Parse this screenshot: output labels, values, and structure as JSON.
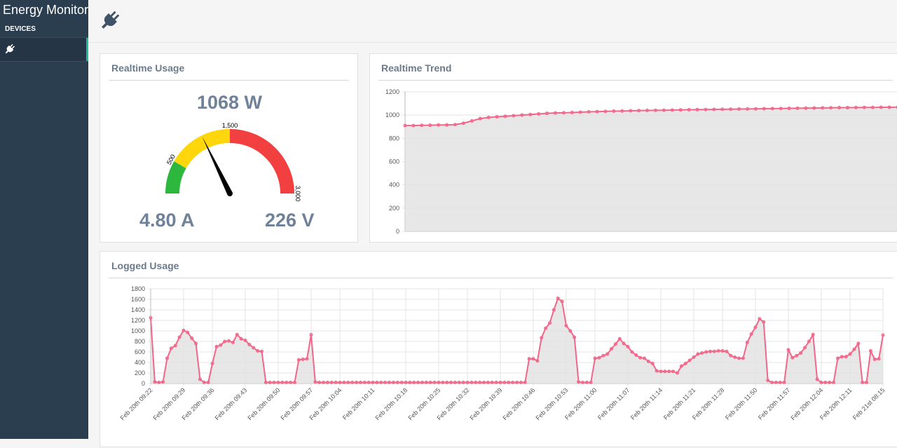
{
  "sidebar": {
    "brand": "Energy Monitor",
    "section_label": "DEVICES",
    "items": [
      {
        "icon": "plug-icon"
      }
    ]
  },
  "header": {
    "icon": "plug-icon"
  },
  "realtime_usage": {
    "title": "Realtime Usage",
    "power": "1068 W",
    "current": "4.80 A",
    "voltage": "226 V",
    "gauge": {
      "min": 0,
      "max": 3000,
      "value": 1068,
      "ticks": [
        "500",
        "1,500",
        "3,000"
      ],
      "bands": [
        {
          "from": 0,
          "to": 500,
          "color": "#2db83d"
        },
        {
          "from": 500,
          "to": 1500,
          "color": "#fdd70b"
        },
        {
          "from": 1500,
          "to": 3000,
          "color": "#f24040"
        }
      ]
    }
  },
  "realtime_trend": {
    "title": "Realtime Trend"
  },
  "logged_usage": {
    "title": "Logged Usage"
  },
  "chart_data": [
    {
      "type": "area",
      "title": "Realtime Trend",
      "ylim": [
        0,
        1200
      ],
      "yticks": [
        0,
        200,
        400,
        600,
        800,
        1000,
        1200
      ],
      "grid": true,
      "color": "#f0678a",
      "fill": "#e3e3e3",
      "series": [
        {
          "values": [
            910,
            910,
            912,
            913,
            915,
            915,
            918,
            930,
            950,
            970,
            980,
            985,
            990,
            995,
            1000,
            1005,
            1010,
            1015,
            1018,
            1020,
            1022,
            1025,
            1028,
            1030,
            1032,
            1034,
            1035,
            1037,
            1039,
            1040,
            1041,
            1042,
            1043,
            1045,
            1046,
            1047,
            1048,
            1049,
            1050,
            1051,
            1052,
            1053,
            1054,
            1055,
            1056,
            1057,
            1058,
            1059,
            1060,
            1061,
            1062,
            1063,
            1064,
            1064,
            1065,
            1066,
            1066,
            1067,
            1067,
            1068
          ]
        }
      ]
    },
    {
      "type": "area",
      "title": "Logged Usage",
      "ylim": [
        0,
        1800
      ],
      "yticks": [
        0,
        200,
        400,
        600,
        800,
        1000,
        1200,
        1400,
        1600,
        1800
      ],
      "grid": true,
      "color": "#f0678a",
      "fill": "#e3e3e3",
      "x_tick_labels": [
        "Feb 20th 09:22",
        "Feb 20th 09:29",
        "Feb 20th 09:36",
        "Feb 20th 09:43",
        "Feb 20th 09:50",
        "Feb 20th 09:57",
        "Feb 20th 10:04",
        "Feb 20th 10:11",
        "Feb 20th 10:18",
        "Feb 20th 10:25",
        "Feb 20th 10:32",
        "Feb 20th 10:39",
        "Feb 20th 10:46",
        "Feb 20th 10:53",
        "Feb 20th 11:00",
        "Feb 20th 11:07",
        "Feb 20th 11:14",
        "Feb 20th 11:21",
        "Feb 20th 11:28",
        "Feb 20th 11:50",
        "Feb 20th 11:57",
        "Feb 20th 12:04",
        "Feb 20th 12:11",
        "Feb 21st 08:15"
      ],
      "series": [
        {
          "values": [
            1250,
            30,
            20,
            30,
            480,
            670,
            720,
            880,
            1010,
            970,
            860,
            760,
            80,
            20,
            20,
            380,
            700,
            730,
            800,
            810,
            780,
            930,
            850,
            820,
            740,
            680,
            620,
            610,
            20,
            20,
            20,
            20,
            20,
            20,
            20,
            20,
            450,
            460,
            470,
            930,
            30,
            20,
            20,
            20,
            20,
            20,
            20,
            20,
            20,
            20,
            20,
            20,
            20,
            20,
            20,
            20,
            20,
            20,
            20,
            20,
            20,
            20,
            20,
            20,
            20,
            20,
            20,
            20,
            20,
            20,
            20,
            20,
            20,
            20,
            20,
            20,
            20,
            20,
            20,
            20,
            20,
            20,
            20,
            20,
            20,
            20,
            20,
            20,
            20,
            20,
            20,
            20,
            470,
            470,
            430,
            870,
            1050,
            1150,
            1400,
            1620,
            1560,
            1100,
            1000,
            880,
            30,
            20,
            20,
            20,
            480,
            490,
            530,
            560,
            660,
            750,
            850,
            760,
            700,
            600,
            540,
            490,
            480,
            420,
            380,
            240,
            230,
            230,
            230,
            230,
            200,
            330,
            380,
            440,
            500,
            560,
            580,
            600,
            610,
            610,
            620,
            620,
            610,
            530,
            500,
            480,
            480,
            780,
            940,
            1070,
            1230,
            1170,
            60,
            20,
            20,
            20,
            20,
            640,
            490,
            530,
            580,
            680,
            800,
            930,
            80,
            20,
            20,
            20,
            20,
            480,
            510,
            510,
            560,
            650,
            760,
            20,
            20,
            620,
            460,
            470,
            920
          ]
        }
      ]
    }
  ]
}
